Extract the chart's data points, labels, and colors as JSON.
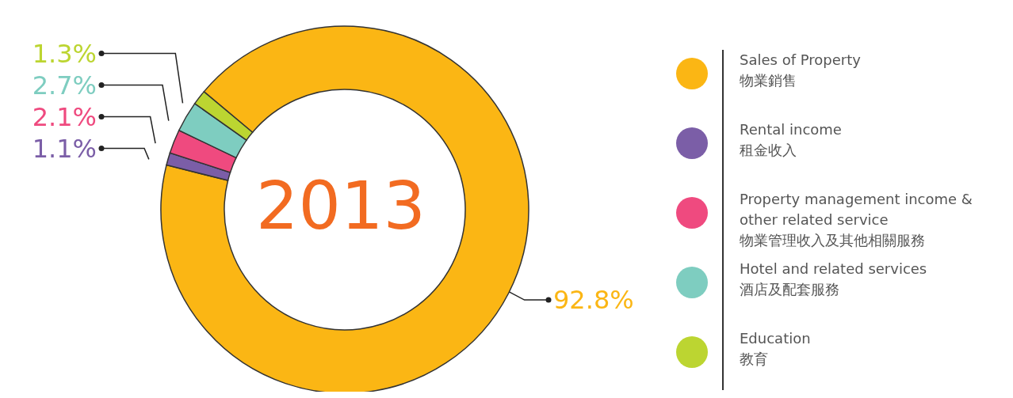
{
  "chart_data": {
    "type": "donut",
    "title": "2013",
    "categories": [
      "Sales of Property\n物業銷售",
      "Rental income\n租金收入",
      "Property management income & other related service\n物業管理收入及其他相關服務",
      "Hotel and related services\n酒店及配套服務",
      "Education\n教育"
    ],
    "values": [
      92.8,
      1.1,
      2.1,
      2.7,
      1.3
    ],
    "colors": [
      "#fbb614",
      "#7b5ea7",
      "#ef4a7f",
      "#7ecdc0",
      "#bcd531"
    ],
    "value_labels": [
      "92.8%",
      "1.1%",
      "2.1%",
      "2.7%",
      "1.3%"
    ],
    "legend": "right"
  }
}
